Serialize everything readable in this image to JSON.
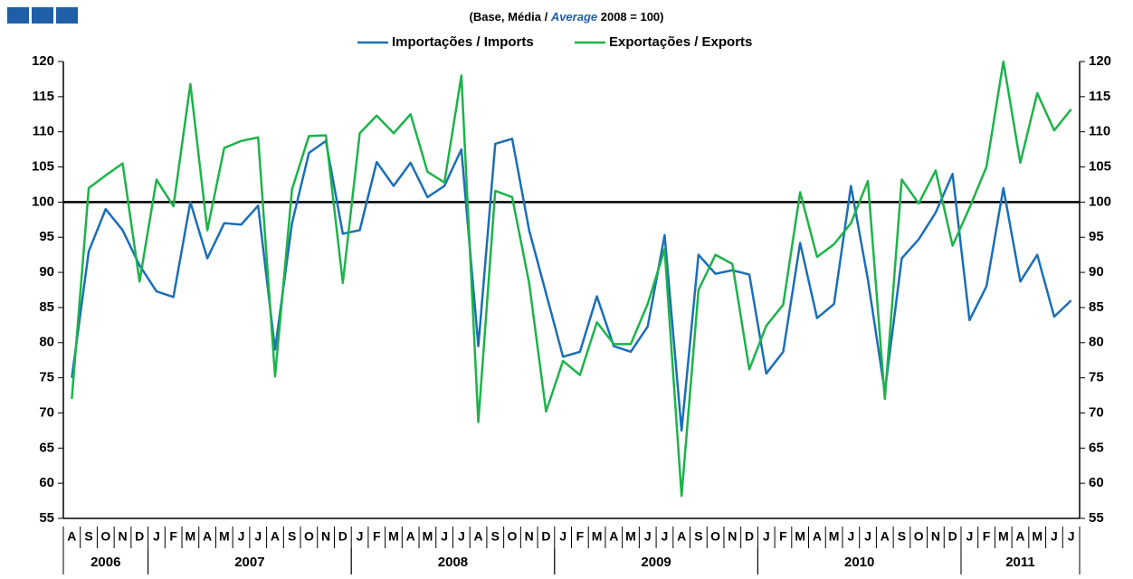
{
  "chart_data": {
    "type": "line",
    "subtitle_parts": [
      "(Base, Média / ",
      "Average",
      " 2008 = 100)"
    ],
    "categories": [
      "A",
      "S",
      "O",
      "N",
      "D",
      "J",
      "F",
      "M",
      "A",
      "M",
      "J",
      "J",
      "A",
      "S",
      "O",
      "N",
      "D",
      "J",
      "F",
      "M",
      "A",
      "M",
      "J",
      "J",
      "A",
      "S",
      "O",
      "N",
      "D",
      "J",
      "F",
      "M",
      "A",
      "M",
      "J",
      "J",
      "A",
      "S",
      "O",
      "N",
      "D",
      "J",
      "F",
      "M",
      "A",
      "M",
      "J",
      "J",
      "A",
      "S",
      "O",
      "N",
      "D",
      "J",
      "F",
      "M",
      "A",
      "M",
      "J",
      "J"
    ],
    "year_groups": [
      {
        "label": "2006",
        "span": 5
      },
      {
        "label": "2007",
        "span": 12
      },
      {
        "label": "2008",
        "span": 12
      },
      {
        "label": "2009",
        "span": 12
      },
      {
        "label": "2010",
        "span": 12
      },
      {
        "label": "2011",
        "span": 7
      }
    ],
    "series": [
      {
        "name": "Importações / Imports",
        "color": "#1a6fb5",
        "values": [
          75,
          93,
          99,
          96,
          91,
          87.3,
          86.5,
          100,
          92,
          97,
          96.8,
          99.5,
          79,
          97,
          107,
          108.7,
          95.5,
          96,
          105.7,
          102.3,
          105.6,
          100.7,
          102.3,
          107.5,
          79.5,
          108.3,
          109,
          96,
          87,
          78,
          78.7,
          86.6,
          79.5,
          78.7,
          82.3,
          95.3,
          67.5,
          92.5,
          89.8,
          90.3,
          89.7,
          75.6,
          78.7,
          94.2,
          83.5,
          85.5,
          102.3,
          89,
          73,
          92,
          94.7,
          98.5,
          104,
          83.2,
          88,
          102,
          88.7,
          92.5,
          83.7,
          86
        ]
      },
      {
        "name": "Exportações / Exports",
        "color": "#1db34a",
        "values": [
          72,
          102,
          103.8,
          105.5,
          88.7,
          103.2,
          99.4,
          116.8,
          96,
          107.7,
          108.7,
          109.2,
          75.2,
          101.8,
          109.4,
          109.5,
          88.5,
          109.8,
          112.3,
          109.8,
          112.5,
          104.3,
          102.8,
          118,
          68.7,
          101.6,
          100.7,
          88.5,
          70.2,
          77.4,
          75.4,
          82.9,
          79.8,
          79.8,
          85.5,
          93.3,
          58.2,
          87.5,
          92.5,
          91.2,
          76.2,
          82.4,
          85.4,
          101.4,
          92.2,
          94,
          97,
          103,
          72,
          103.2,
          99.8,
          104.5,
          93.8,
          99.2,
          105,
          120,
          105.6,
          115.5,
          110.2,
          113.2
        ]
      }
    ],
    "reference_line": 100,
    "ylim": [
      55,
      120
    ],
    "yticks": [
      55,
      60,
      65,
      70,
      75,
      80,
      85,
      90,
      95,
      100,
      105,
      110,
      115,
      120
    ],
    "y2lim": [
      55,
      120
    ],
    "y2ticks": [
      55,
      60,
      65,
      70,
      75,
      80,
      85,
      90,
      95,
      100,
      105,
      110,
      115,
      120
    ],
    "legend": "top"
  }
}
